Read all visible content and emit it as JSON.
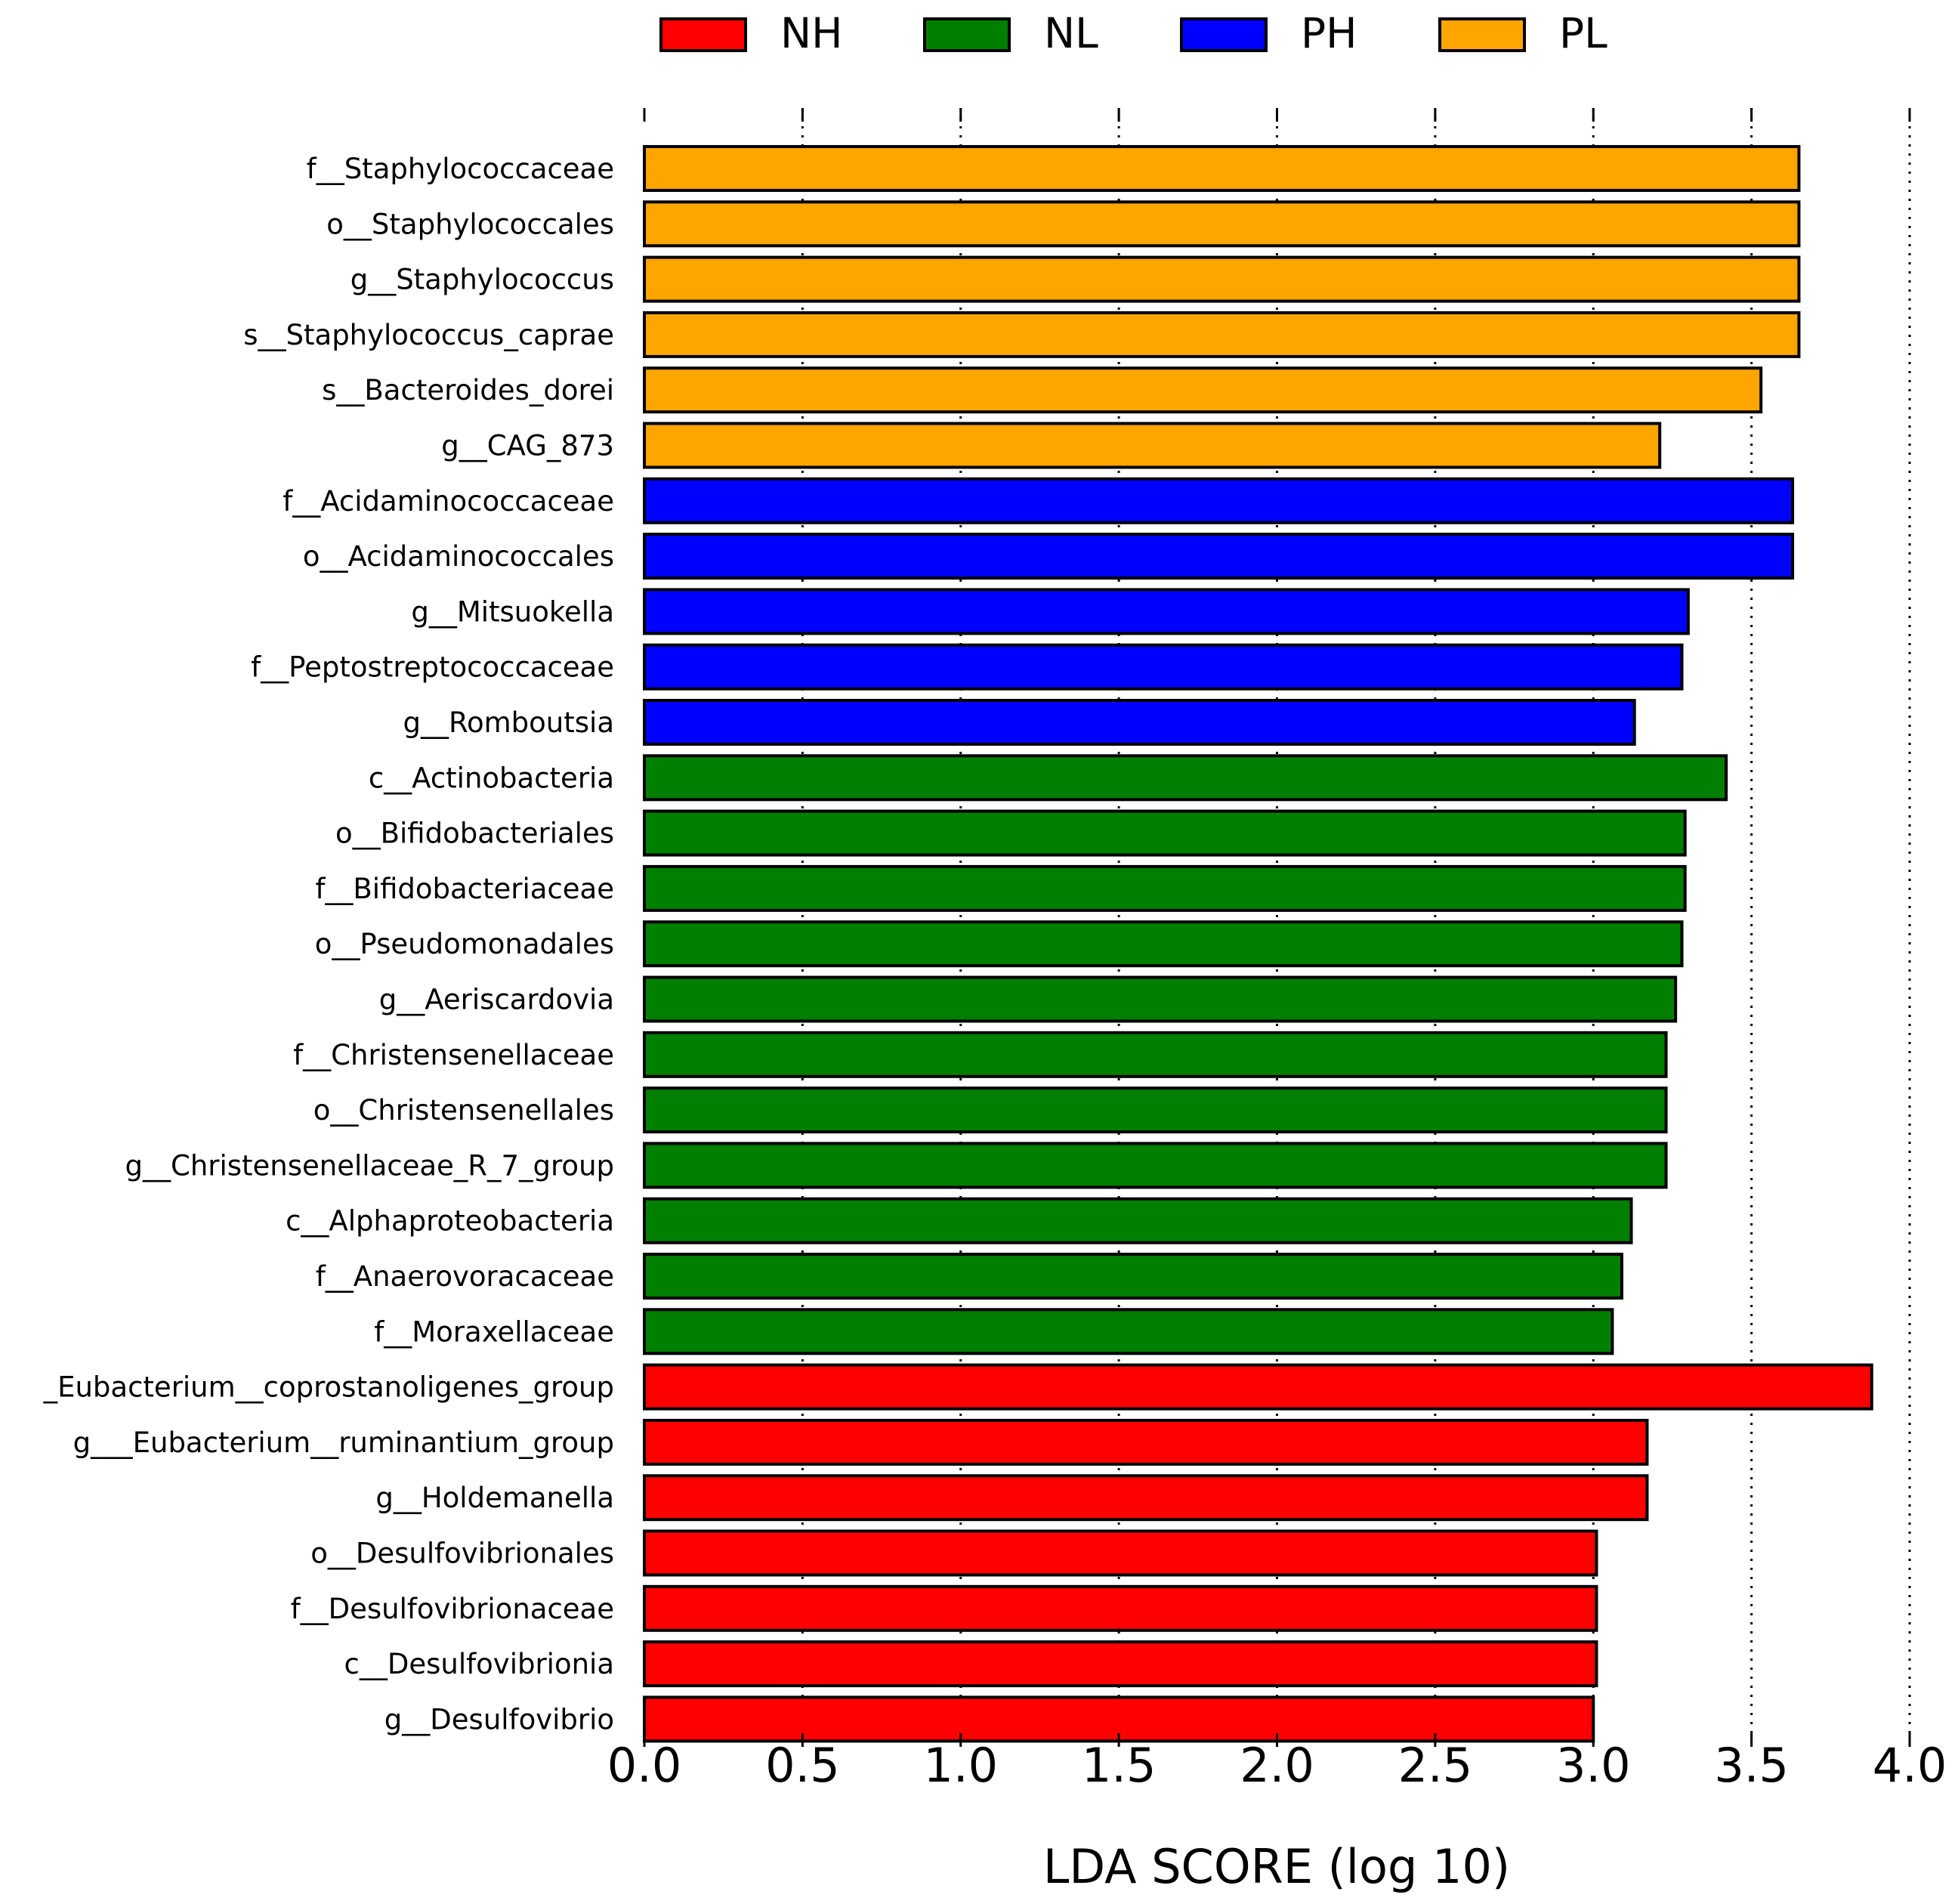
{
  "chart_data": {
    "type": "bar",
    "orientation": "horizontal",
    "xlabel": "LDA SCORE (log 10)",
    "xlim": [
      0,
      4.0
    ],
    "xticks": [
      "0.0",
      "0.5",
      "1.0",
      "1.5",
      "2.0",
      "2.5",
      "3.0",
      "3.5",
      "4.0"
    ],
    "grid": "vertical dotted",
    "legend_position": "top",
    "legend": [
      {
        "name": "NH",
        "color": "#ff0000"
      },
      {
        "name": "NL",
        "color": "#007f00"
      },
      {
        "name": "PH",
        "color": "#0000ff"
      },
      {
        "name": "PL",
        "color": "#ffa500"
      }
    ],
    "bars": [
      {
        "label": "f__Staphylococcaceae",
        "value": 3.65,
        "group": "PL"
      },
      {
        "label": "o__Staphylococcales",
        "value": 3.65,
        "group": "PL"
      },
      {
        "label": "g__Staphylococcus",
        "value": 3.65,
        "group": "PL"
      },
      {
        "label": "s__Staphylococcus_caprae",
        "value": 3.65,
        "group": "PL"
      },
      {
        "label": "s__Bacteroides_dorei",
        "value": 3.53,
        "group": "PL"
      },
      {
        "label": "g__CAG_873",
        "value": 3.21,
        "group": "PL"
      },
      {
        "label": "f__Acidaminococcaceae",
        "value": 3.63,
        "group": "PH"
      },
      {
        "label": "o__Acidaminococcales",
        "value": 3.63,
        "group": "PH"
      },
      {
        "label": "g__Mitsuokella",
        "value": 3.3,
        "group": "PH"
      },
      {
        "label": "f__Peptostreptococcaceae",
        "value": 3.28,
        "group": "PH"
      },
      {
        "label": "g__Romboutsia",
        "value": 3.13,
        "group": "PH"
      },
      {
        "label": "c__Actinobacteria",
        "value": 3.42,
        "group": "NL"
      },
      {
        "label": "o__Bifidobacteriales",
        "value": 3.29,
        "group": "NL"
      },
      {
        "label": "f__Bifidobacteriaceae",
        "value": 3.29,
        "group": "NL"
      },
      {
        "label": "o__Pseudomonadales",
        "value": 3.28,
        "group": "NL"
      },
      {
        "label": "g__Aeriscardovia",
        "value": 3.26,
        "group": "NL"
      },
      {
        "label": "f__Christensenellaceae",
        "value": 3.23,
        "group": "NL"
      },
      {
        "label": "o__Christensenellales",
        "value": 3.23,
        "group": "NL"
      },
      {
        "label": "g__Christensenellaceae_R_7_group",
        "value": 3.23,
        "group": "NL"
      },
      {
        "label": "c__Alphaproteobacteria",
        "value": 3.12,
        "group": "NL"
      },
      {
        "label": "f__Anaerovoracaceae",
        "value": 3.09,
        "group": "NL"
      },
      {
        "label": "f__Moraxellaceae",
        "value": 3.06,
        "group": "NL"
      },
      {
        "label": "_Eubacterium__coprostanoligenes_group",
        "value": 3.88,
        "group": "NH"
      },
      {
        "label": "g___Eubacterium__ruminantium_group",
        "value": 3.17,
        "group": "NH"
      },
      {
        "label": "g__Holdemanella",
        "value": 3.17,
        "group": "NH"
      },
      {
        "label": "o__Desulfovibrionales",
        "value": 3.01,
        "group": "NH"
      },
      {
        "label": "f__Desulfovibrionaceae",
        "value": 3.01,
        "group": "NH"
      },
      {
        "label": "c__Desulfovibrionia",
        "value": 3.01,
        "group": "NH"
      },
      {
        "label": "g__Desulfovibrio",
        "value": 3.0,
        "group": "NH"
      }
    ]
  }
}
